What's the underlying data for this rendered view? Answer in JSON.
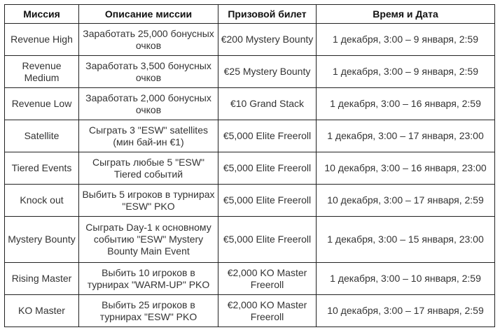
{
  "headers": [
    "Миссия",
    "Описание миссии",
    "Призовой билет",
    "Время и Дата"
  ],
  "rows": [
    {
      "mission": "Revenue High",
      "description": "Заработать 25,000 бонусных очков",
      "prize": "€200 Mystery Bounty",
      "time": "1 декабря, 3:00 – 9 января, 2:59"
    },
    {
      "mission": "Revenue Medium",
      "description": "Заработать 3,500 бонусных очков",
      "prize": "€25 Mystery Bounty",
      "time": "1 декабря, 3:00 – 9 января, 2:59"
    },
    {
      "mission": "Revenue Low",
      "description": "Заработать 2,000 бонусных очков",
      "prize": "€10 Grand Stack",
      "time": "1 декабря, 3:00 – 16 января, 2:59"
    },
    {
      "mission": "Satellite",
      "description": "Сыграть 3 \"ESW\" satellites (мин бай-ин €1)",
      "prize": "€5,000 Elite Freeroll",
      "time": "1 декабря, 3:00 – 17 января, 23:00"
    },
    {
      "mission": "Tiered Events",
      "description": "Сыграть любые 5 \"ESW\" Tiered событий",
      "prize": "€5,000 Elite Freeroll",
      "time": "10 декабря, 3:00 – 16 января, 23:00"
    },
    {
      "mission": "Knock out",
      "description": "Выбить 5 игроков в турнирах \"ESW\" PKO",
      "prize": "€5,000 Elite Freeroll",
      "time": "10 декабря, 3:00 – 17 января, 2:59"
    },
    {
      "mission": "Mystery Bounty",
      "description": "Сыграть Day-1 к основному событию \"ESW\" Mystery Bounty Main Event",
      "prize": "€5,000 Elite Freeroll",
      "time": "1 декабря, 3:00 – 15 января, 23:00"
    },
    {
      "mission": "Rising Master",
      "description": "Выбить 10 игроков в турнирах \"WARM-UP\" PKO",
      "prize": "€2,000 KO Master Freeroll",
      "time": "1 декабря, 3:00 – 10 января, 2:59"
    },
    {
      "mission": "KO Master",
      "description": "Выбить 25 игроков в турнирах \"ESW\" PKO",
      "prize": "€2,000 KO Master Freeroll",
      "time": "10 декабря, 3:00 – 17 января, 2:59"
    }
  ]
}
